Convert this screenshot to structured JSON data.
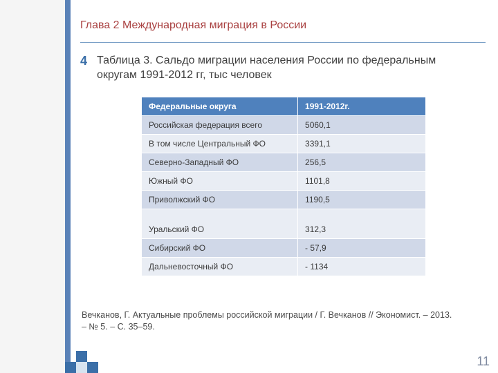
{
  "chapter_title": "Глава 2 Международная миграция в России",
  "bullet_char": "4",
  "caption": "Таблица 3. Сальдо миграции населения России по федеральным округам  1991-2012 гг,  тыс человек",
  "table": {
    "header_bg": "#4f81bd",
    "header_fg": "#ffffff",
    "row_alt_bg_light": "#d0d8e8",
    "row_alt_bg_dark": "#e9edf4",
    "border_color": "#ffffff",
    "columns": [
      "Федеральные округа",
      "1991-2012г."
    ],
    "rows": [
      [
        "Российская федерация всего",
        "5060,1"
      ],
      [
        "В том числе  Центральный ФО",
        "3391,1"
      ],
      [
        "Северно-Западный ФО",
        "256,5"
      ],
      [
        "Южный ФО",
        "1101,8"
      ],
      [
        "Приволжский ФО",
        "1190,5"
      ],
      [
        "Уральский ФО",
        "312,3"
      ],
      [
        "Сибирский ФО",
        "- 57,9"
      ],
      [
        "Дальневосточный ФО",
        "- 1134"
      ]
    ],
    "tall_row_index": 5
  },
  "citation": "Вечканов, Г. Актуальные проблемы российской миграции / Г. Вечканов  // Экономист. – 2013. –  № 5. – С. 35–59.",
  "page_number": "11",
  "accent_strip_color": "#5a82b8"
}
